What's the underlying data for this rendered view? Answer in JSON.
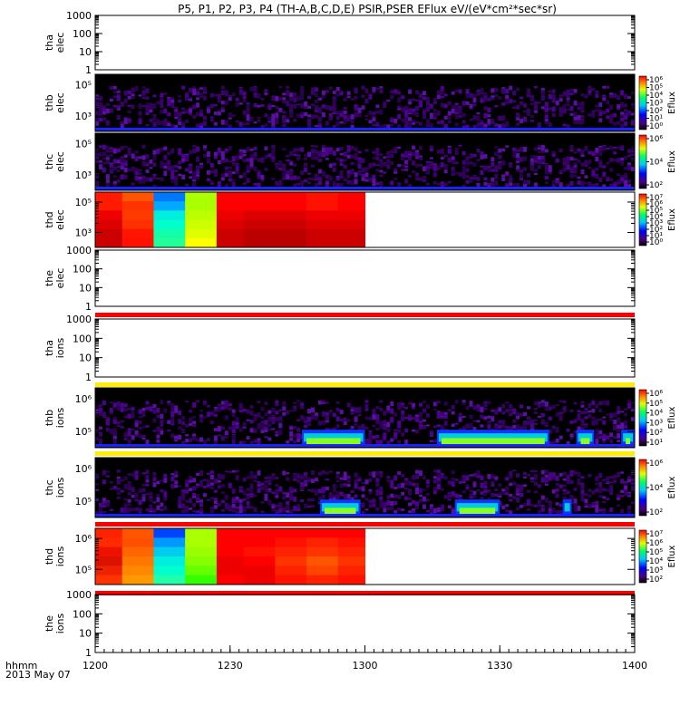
{
  "title": "P5, P1, P2, P3, P4 (TH-A,B,C,D,E) PSIR,PSER EFlux eV/(eV*cm²*sec*sr)",
  "xaxis": {
    "label_top": "hhmm",
    "label_bottom": "2013 May 07",
    "ticks": [
      "1200",
      "1230",
      "1300",
      "1330",
      "1400"
    ],
    "range_minutes": [
      0,
      120
    ]
  },
  "chart_data": {
    "type": "heatmap",
    "panels": [
      {
        "id": "tha-elec",
        "label1": "tha",
        "label2": "elec",
        "kind": "empty",
        "yticks": [
          "1000",
          "100",
          "10",
          "1"
        ],
        "ylim": [
          1,
          1000
        ],
        "yscale": "log"
      },
      {
        "id": "thb-elec",
        "label1": "thb",
        "label2": "elec",
        "kind": "noise",
        "yticks": [
          "10⁵",
          "10³"
        ],
        "cbar_ticks": [
          "10⁶",
          "10⁵",
          "10⁴",
          "10³",
          "10²",
          "10¹",
          "10⁰"
        ],
        "cbar_label": "Eflux",
        "cbar_range": [
          0,
          6
        ]
      },
      {
        "id": "thc-elec",
        "label1": "thc",
        "label2": "elec",
        "kind": "noise",
        "yticks": [
          "10⁵",
          "10³"
        ],
        "cbar_ticks": [
          "10⁶",
          "10⁴",
          "10²"
        ],
        "cbar_label": "Eflux",
        "cbar_range": [
          1,
          7
        ]
      },
      {
        "id": "thd-elec",
        "label1": "thd",
        "label2": "elec",
        "kind": "blocks",
        "yticks": [
          "10⁵",
          "10³"
        ],
        "cbar_ticks": [
          "10⁷",
          "10⁶",
          "10⁵",
          "10⁴",
          "10³",
          "10²",
          "10¹",
          "10⁰"
        ],
        "cbar_label": "Eflux",
        "cbar_range": [
          0,
          7
        ],
        "blocks": {
          "time_edges_min": [
            0,
            6,
            13,
            20,
            27,
            33,
            40,
            47,
            54,
            60
          ],
          "rows": 6,
          "columns": [
            {
              "colors": [
                "#ff1a00",
                "#ff1a00",
                "#ee0000",
                "#dd0000",
                "#cc0000",
                "#cc0000"
              ]
            },
            {
              "colors": [
                "#ff5500",
                "#ff3300",
                "#ff3a00",
                "#ff3000",
                "#ff1500",
                "#ff1000"
              ]
            },
            {
              "colors": [
                "#0077ff",
                "#00aaff",
                "#00eedd",
                "#00ffcc",
                "#11ffaa",
                "#22ff99"
              ]
            },
            {
              "colors": [
                "#aaff00",
                "#aaff00",
                "#bbff00",
                "#ccff00",
                "#ddff00",
                "#ffff00"
              ]
            },
            {
              "colors": [
                "#ff0000",
                "#ff0000",
                "#ee0000",
                "#dd0000",
                "#cc0000",
                "#cc0000"
              ]
            },
            {
              "colors": [
                "#ff0000",
                "#ff0000",
                "#dd0000",
                "#cc0000",
                "#bb0000",
                "#bb0000"
              ]
            },
            {
              "colors": [
                "#ff0000",
                "#ff0000",
                "#dd0000",
                "#cc0000",
                "#bb0000",
                "#bb0000"
              ]
            },
            {
              "colors": [
                "#ff1100",
                "#ff1100",
                "#ee0000",
                "#dd0000",
                "#cc0000",
                "#cc0000"
              ]
            },
            {
              "colors": [
                "#ff0000",
                "#ff0000",
                "#ee0000",
                "#dd0000",
                "#cc0000",
                "#cc0000"
              ]
            }
          ]
        }
      },
      {
        "id": "the-elec",
        "label1": "the",
        "label2": "elec",
        "kind": "empty",
        "yticks": [
          "1000",
          "100",
          "10",
          "1"
        ],
        "ylim": [
          1,
          1000
        ],
        "yscale": "log",
        "bar_color": "#ff0000"
      },
      {
        "id": "tha-ions",
        "label1": "tha",
        "label2": "ions",
        "kind": "empty",
        "yticks": [
          "1000",
          "100",
          "10",
          "1"
        ],
        "ylim": [
          1,
          1000
        ],
        "yscale": "log",
        "bar_color": "#ffee00"
      },
      {
        "id": "thb-ions",
        "label1": "thb",
        "label2": "ions",
        "kind": "noise-events",
        "yticks": [
          "10⁶",
          "10⁵"
        ],
        "cbar_ticks": [
          "10⁶",
          "10⁵",
          "10⁴",
          "10³",
          "10²",
          "10¹"
        ],
        "cbar_label": "Eflux",
        "cbar_range": [
          0,
          6
        ],
        "bar_color": "#ffee00",
        "events_min": [
          [
            46,
            60
          ],
          [
            76,
            101
          ],
          [
            107,
            111
          ],
          [
            117,
            120
          ]
        ]
      },
      {
        "id": "thc-ions",
        "label1": "thc",
        "label2": "ions",
        "kind": "noise-events",
        "yticks": [
          "10⁶",
          "10⁵"
        ],
        "cbar_ticks": [
          "10⁶",
          "10⁴",
          "10²"
        ],
        "cbar_label": "Eflux",
        "cbar_range": [
          1,
          7
        ],
        "bar_color": "#ff0000",
        "events_min": [
          [
            50,
            59
          ],
          [
            80,
            90
          ],
          [
            104,
            106
          ]
        ]
      },
      {
        "id": "thd-ions",
        "label1": "thd",
        "label2": "ions",
        "kind": "blocks",
        "yticks": [
          "10⁶",
          "10⁵"
        ],
        "cbar_ticks": [
          "10⁷",
          "10⁶",
          "10⁵",
          "10⁴",
          "10³",
          "10²"
        ],
        "cbar_label": "Eflux",
        "cbar_range": [
          2,
          7
        ],
        "bar_color": "#ff0000",
        "blocks": {
          "time_edges_min": [
            0,
            6,
            13,
            20,
            27,
            33,
            40,
            47,
            54,
            60
          ],
          "rows": 6,
          "columns": [
            {
              "colors": [
                "#ff2200",
                "#ff2a00",
                "#ee1100",
                "#dd1100",
                "#ee2200",
                "#ff3300"
              ]
            },
            {
              "colors": [
                "#ff5500",
                "#ff5000",
                "#ff6600",
                "#ff7700",
                "#ff8800",
                "#ff9900"
              ]
            },
            {
              "colors": [
                "#0044ff",
                "#0099ff",
                "#00ccee",
                "#00eedd",
                "#00ffcc",
                "#22ffaa"
              ]
            },
            {
              "colors": [
                "#aaff00",
                "#aaff00",
                "#99ff00",
                "#88ff00",
                "#66ff00",
                "#33ff00"
              ]
            },
            {
              "colors": [
                "#ff0000",
                "#ff0000",
                "#ff0000",
                "#ee0000",
                "#ee0000",
                "#ff0000"
              ]
            },
            {
              "colors": [
                "#ff0000",
                "#ff0000",
                "#ff1100",
                "#ff0000",
                "#ee0000",
                "#ee0000"
              ]
            },
            {
              "colors": [
                "#ff0000",
                "#ff1100",
                "#ff2200",
                "#ff3300",
                "#ff2200",
                "#ff1100"
              ]
            },
            {
              "colors": [
                "#ff0000",
                "#ff2200",
                "#ff3300",
                "#ff5500",
                "#ff4400",
                "#ff2200"
              ]
            },
            {
              "colors": [
                "#ff0000",
                "#ff1100",
                "#ff2200",
                "#ff3300",
                "#ff2200",
                "#ff1100"
              ]
            }
          ]
        }
      },
      {
        "id": "the-ions",
        "label1": "the",
        "label2": "ions",
        "kind": "empty",
        "yticks": [
          "1000",
          "100",
          "10",
          "1"
        ],
        "ylim": [
          1,
          1000
        ],
        "yscale": "log"
      }
    ]
  }
}
